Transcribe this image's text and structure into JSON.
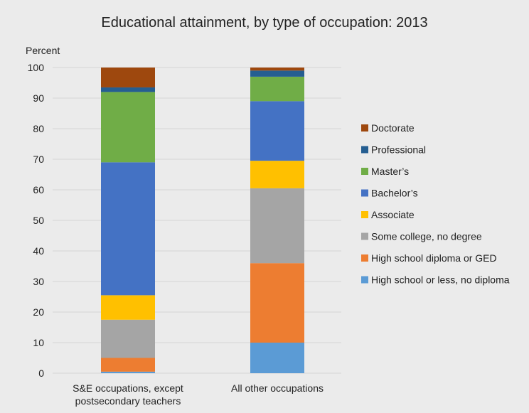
{
  "chart_data": {
    "type": "bar",
    "stacked": true,
    "title": "Educational attainment, by type of occupation: 2013",
    "ylabel": "Percent",
    "xlabel": "",
    "ylim": [
      0,
      100
    ],
    "yticks": [
      "0",
      "10",
      "20",
      "30",
      "40",
      "50",
      "60",
      "70",
      "80",
      "90",
      "100"
    ],
    "categories": [
      [
        "S&E occupations, except",
        "postsecondary teachers"
      ],
      [
        "All other occupations"
      ]
    ],
    "grid": true,
    "legend": "right",
    "series": [
      {
        "name": "High school or less, no diploma",
        "color": "#5b9bd5",
        "values": [
          0.5,
          10
        ]
      },
      {
        "name": "High school diploma or GED",
        "color": "#ed7d31",
        "values": [
          4.5,
          26
        ]
      },
      {
        "name": "Some college, no degree",
        "color": "#a5a5a5",
        "values": [
          12.5,
          24.5
        ]
      },
      {
        "name": "Associate",
        "color": "#ffc000",
        "values": [
          8,
          9
        ]
      },
      {
        "name": "Bachelor’s",
        "color": "#4472c4",
        "values": [
          43.5,
          19.5
        ]
      },
      {
        "name": "Master’s",
        "color": "#70ad47",
        "values": [
          23,
          8
        ]
      },
      {
        "name": "Professional",
        "color": "#255e91",
        "values": [
          1.5,
          2
        ]
      },
      {
        "name": "Doctorate",
        "color": "#9e480e",
        "values": [
          6.5,
          1
        ]
      }
    ]
  }
}
